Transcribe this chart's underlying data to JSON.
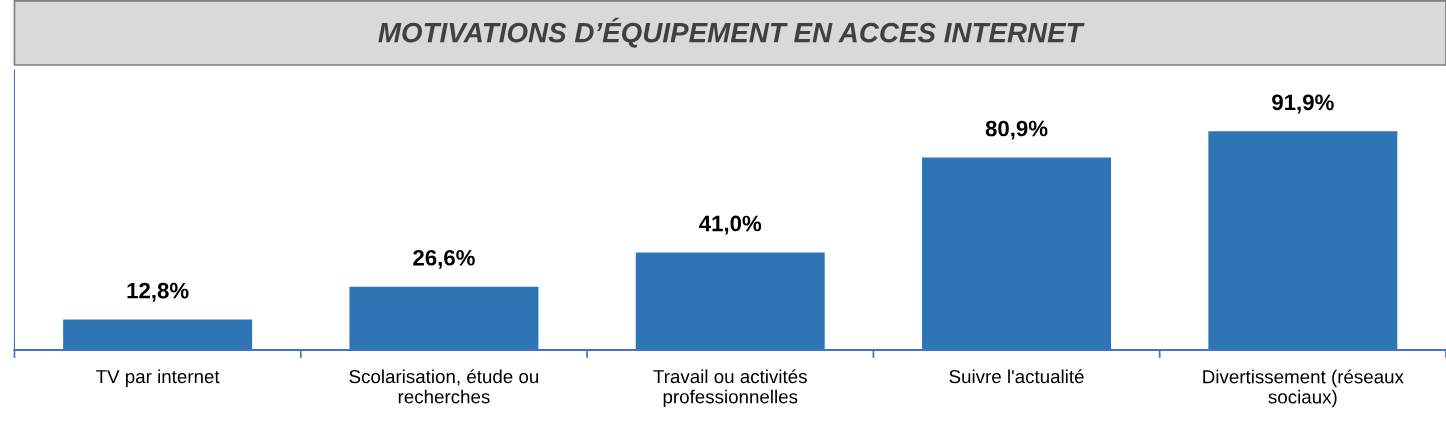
{
  "chart_data": {
    "type": "bar",
    "title": "MOTIVATIONS D’ÉQUIPEMENT EN ACCES INTERNET",
    "categories": [
      "TV par internet",
      "Scolarisation, étude ou\nrecherches",
      "Travail ou activités\nprofessionnelles",
      "Suivre l'actualité",
      "Divertissement (réseaux\nsociaux)"
    ],
    "values": [
      12.8,
      26.6,
      41.0,
      80.9,
      91.9
    ],
    "value_labels": [
      "12,8%",
      "26,6%",
      "41,0%",
      "80,9%",
      "91,9%"
    ],
    "color": "#2e75b6",
    "grid": false,
    "legend": false
  }
}
